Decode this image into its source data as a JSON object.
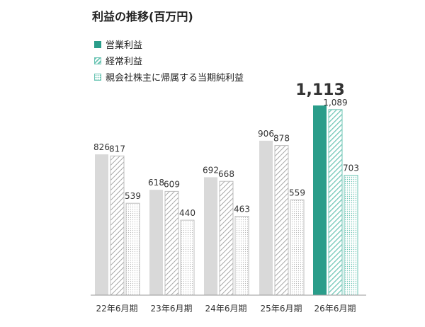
{
  "title": "利益の推移(百万円)",
  "chart_data": {
    "type": "bar",
    "title": "利益の推移(百万円)",
    "categories": [
      "22年6月期",
      "23年6月期",
      "24年6月期",
      "25年6月期",
      "26年6月期"
    ],
    "series": [
      {
        "name": "営業利益",
        "values": [
          826,
          618,
          692,
          906,
          1113
        ],
        "labels": [
          "826",
          "618",
          "692",
          "906",
          "1,113"
        ]
      },
      {
        "name": "経常利益",
        "values": [
          817,
          609,
          668,
          878,
          1089
        ],
        "labels": [
          "817",
          "609",
          "668",
          "878",
          "1,089"
        ]
      },
      {
        "name": "親会社株主に帰属する当期純利益",
        "values": [
          539,
          440,
          463,
          559,
          703
        ],
        "labels": [
          "539",
          "440",
          "463",
          "559",
          "703"
        ]
      }
    ],
    "highlight_category": "26年6月期",
    "ylim": [
      0,
      1113
    ],
    "grid": false,
    "legend_position": "top-left",
    "colors": {
      "gray": "#d9d9d9",
      "gray_stroke": "#bdbdbd",
      "hatch_gray": "#a8a8a8",
      "dot_gray": "#b5b5b5",
      "teal": "#2a9d8a",
      "teal_light": "#6cc5b4",
      "legend_solid": "#2a9d8a",
      "legend_hatch": "#6cc5b4",
      "legend_dot": "#6cc5b4"
    }
  }
}
